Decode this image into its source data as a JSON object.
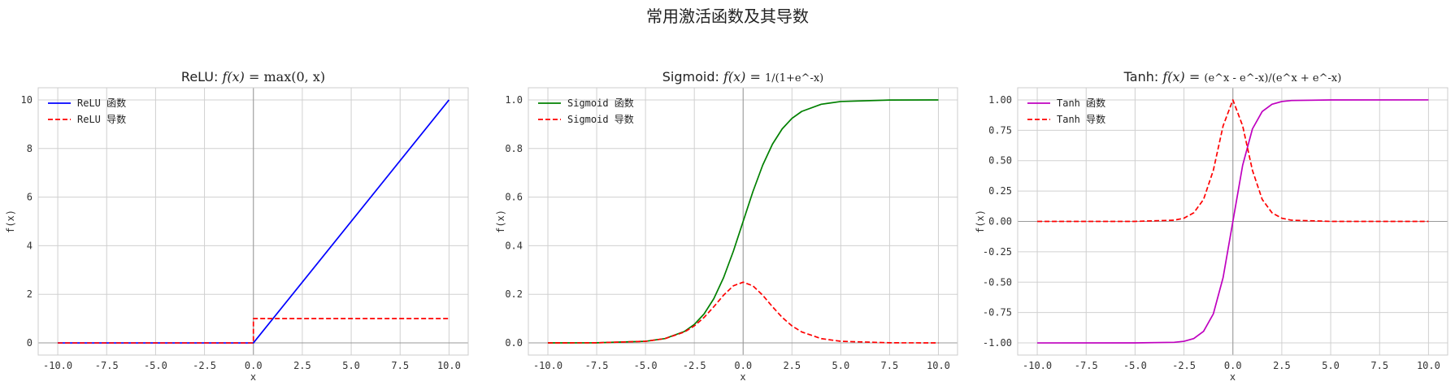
{
  "figure_title": "常用激活函数及其导数",
  "chart_data": [
    {
      "type": "line",
      "title": "ReLU: f(x) = max(0, x)",
      "title_prefix": "ReLU: ",
      "title_formula": "max(0, x)",
      "xlabel": "x",
      "ylabel": "f(x)",
      "xlim": [
        -11.0,
        10.98
      ],
      "ylim": [
        -0.5,
        10.5
      ],
      "xticks": [
        -10.0,
        -7.5,
        -5.0,
        -2.5,
        0.0,
        2.5,
        5.0,
        7.5,
        10.0
      ],
      "xtick_labels": [
        "-10.0",
        "-7.5",
        "-5.0",
        "-2.5",
        "0.0",
        "2.5",
        "5.0",
        "7.5",
        "10.0"
      ],
      "yticks": [
        0,
        2,
        4,
        6,
        8,
        10
      ],
      "ytick_labels": [
        "0",
        "2",
        "4",
        "6",
        "8",
        "10"
      ],
      "grid": true,
      "legend_position": "upper-left",
      "series": [
        {
          "name": "ReLU 函数",
          "color": "#0000ff",
          "style": "solid",
          "x": [
            -10,
            0,
            10
          ],
          "y": [
            0,
            0,
            10
          ]
        },
        {
          "name": "ReLU 导数",
          "color": "#ff0000",
          "style": "dashed",
          "x": [
            -10,
            0,
            0,
            10
          ],
          "y": [
            0,
            0,
            1,
            1
          ]
        }
      ]
    },
    {
      "type": "line",
      "title": "Sigmoid: f(x) = 1/(1+e^-x)",
      "title_prefix": "Sigmoid: ",
      "title_formula": "1/(1+e^-x)",
      "xlabel": "x",
      "ylabel": "f(x)",
      "xlim": [
        -11.0,
        10.98
      ],
      "ylim": [
        -0.05,
        1.05
      ],
      "xticks": [
        -10.0,
        -7.5,
        -5.0,
        -2.5,
        0.0,
        2.5,
        5.0,
        7.5,
        10.0
      ],
      "xtick_labels": [
        "-10.0",
        "-7.5",
        "-5.0",
        "-2.5",
        "0.0",
        "2.5",
        "5.0",
        "7.5",
        "10.0"
      ],
      "yticks": [
        0.0,
        0.2,
        0.4,
        0.6,
        0.8,
        1.0
      ],
      "ytick_labels": [
        "0.0",
        "0.2",
        "0.4",
        "0.6",
        "0.8",
        "1.0"
      ],
      "grid": true,
      "legend_position": "upper-left",
      "series": [
        {
          "name": "Sigmoid 函数",
          "color": "#008000",
          "style": "solid",
          "x": [
            -10,
            -7.5,
            -5,
            -4,
            -3,
            -2.5,
            -2,
            -1.5,
            -1,
            -0.5,
            0,
            0.5,
            1,
            1.5,
            2,
            2.5,
            3,
            4,
            5,
            7.5,
            10
          ],
          "y": [
            4.54e-05,
            0.000553,
            0.00669,
            0.018,
            0.0474,
            0.0759,
            0.1192,
            0.1824,
            0.2689,
            0.3775,
            0.5,
            0.6225,
            0.7311,
            0.8176,
            0.8808,
            0.9241,
            0.9526,
            0.982,
            0.9933,
            0.9994,
            0.99995
          ]
        },
        {
          "name": "Sigmoid 导数",
          "color": "#ff0000",
          "style": "dashed",
          "x": [
            -10,
            -7.5,
            -5,
            -4,
            -3,
            -2.5,
            -2,
            -1.5,
            -1,
            -0.5,
            0,
            0.5,
            1,
            1.5,
            2,
            2.5,
            3,
            4,
            5,
            7.5,
            10
          ],
          "y": [
            4.54e-05,
            0.000553,
            0.00665,
            0.0177,
            0.0452,
            0.0701,
            0.105,
            0.1491,
            0.1966,
            0.235,
            0.25,
            0.235,
            0.1966,
            0.1491,
            0.105,
            0.0701,
            0.0452,
            0.0177,
            0.00665,
            0.000553,
            4.54e-05
          ]
        }
      ]
    },
    {
      "type": "line",
      "title": "Tanh: f(x) = (e^x - e^-x)/(e^x + e^-x)",
      "title_prefix": "Tanh: ",
      "title_formula": "(e^x - e^-x)/(e^x + e^-x)",
      "xlabel": "x",
      "ylabel": "f(x)",
      "xlim": [
        -11.0,
        10.98
      ],
      "ylim": [
        -1.1,
        1.1
      ],
      "xticks": [
        -10.0,
        -7.5,
        -5.0,
        -2.5,
        0.0,
        2.5,
        5.0,
        7.5,
        10.0
      ],
      "xtick_labels": [
        "-10.0",
        "-7.5",
        "-5.0",
        "-2.5",
        "0.0",
        "2.5",
        "5.0",
        "7.5",
        "10.0"
      ],
      "yticks": [
        -1.0,
        -0.75,
        -0.5,
        -0.25,
        0.0,
        0.25,
        0.5,
        0.75,
        1.0
      ],
      "ytick_labels": [
        "-1.00",
        "-0.75",
        "-0.50",
        "-0.25",
        "0.00",
        "0.25",
        "0.50",
        "0.75",
        "1.00"
      ],
      "grid": true,
      "legend_position": "upper-left",
      "series": [
        {
          "name": "Tanh 函数",
          "color": "#bf00bf",
          "style": "solid",
          "x": [
            -10,
            -5,
            -3,
            -2.5,
            -2,
            -1.5,
            -1,
            -0.5,
            0,
            0.5,
            1,
            1.5,
            2,
            2.5,
            3,
            5,
            10
          ],
          "y": [
            -1.0,
            -0.9999,
            -0.9951,
            -0.9866,
            -0.964,
            -0.9051,
            -0.7616,
            -0.4621,
            0.0,
            0.4621,
            0.7616,
            0.9051,
            0.964,
            0.9866,
            0.9951,
            0.9999,
            1.0
          ]
        },
        {
          "name": "Tanh 导数",
          "color": "#ff0000",
          "style": "dashed",
          "x": [
            -10,
            -5,
            -3,
            -2.5,
            -2,
            -1.5,
            -1,
            -0.5,
            0,
            0.5,
            1,
            1.5,
            2,
            2.5,
            3,
            5,
            10
          ],
          "y": [
            0.0,
            0.0002,
            0.0099,
            0.0266,
            0.0707,
            0.1807,
            0.42,
            0.7864,
            1.0,
            0.7864,
            0.42,
            0.1807,
            0.0707,
            0.0266,
            0.0099,
            0.0002,
            0.0
          ]
        }
      ]
    }
  ]
}
